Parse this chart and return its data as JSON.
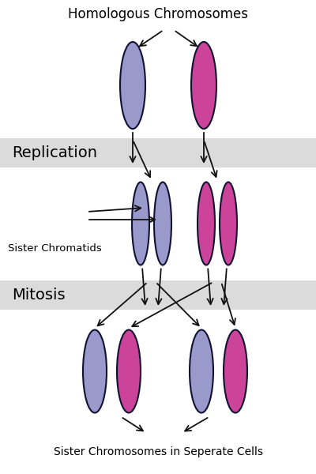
{
  "title": "Homologous Chromosomes",
  "bottom_label": "Sister Chromosomes in Seperate Cells",
  "replication_label": "Replication",
  "mitosis_label": "Mitosis",
  "sister_chromatids_label": "Sister Chromatids",
  "blue_fill": "#9999cc",
  "pink_fill": "#cc4499",
  "outline_color": "#111133",
  "bg_color": "#ffffff",
  "band_color": "#cccccc",
  "band_alpha": 0.7,
  "arrow_color": "#111111",
  "figw": 4.0,
  "figh": 6.0,
  "dpi": 100
}
